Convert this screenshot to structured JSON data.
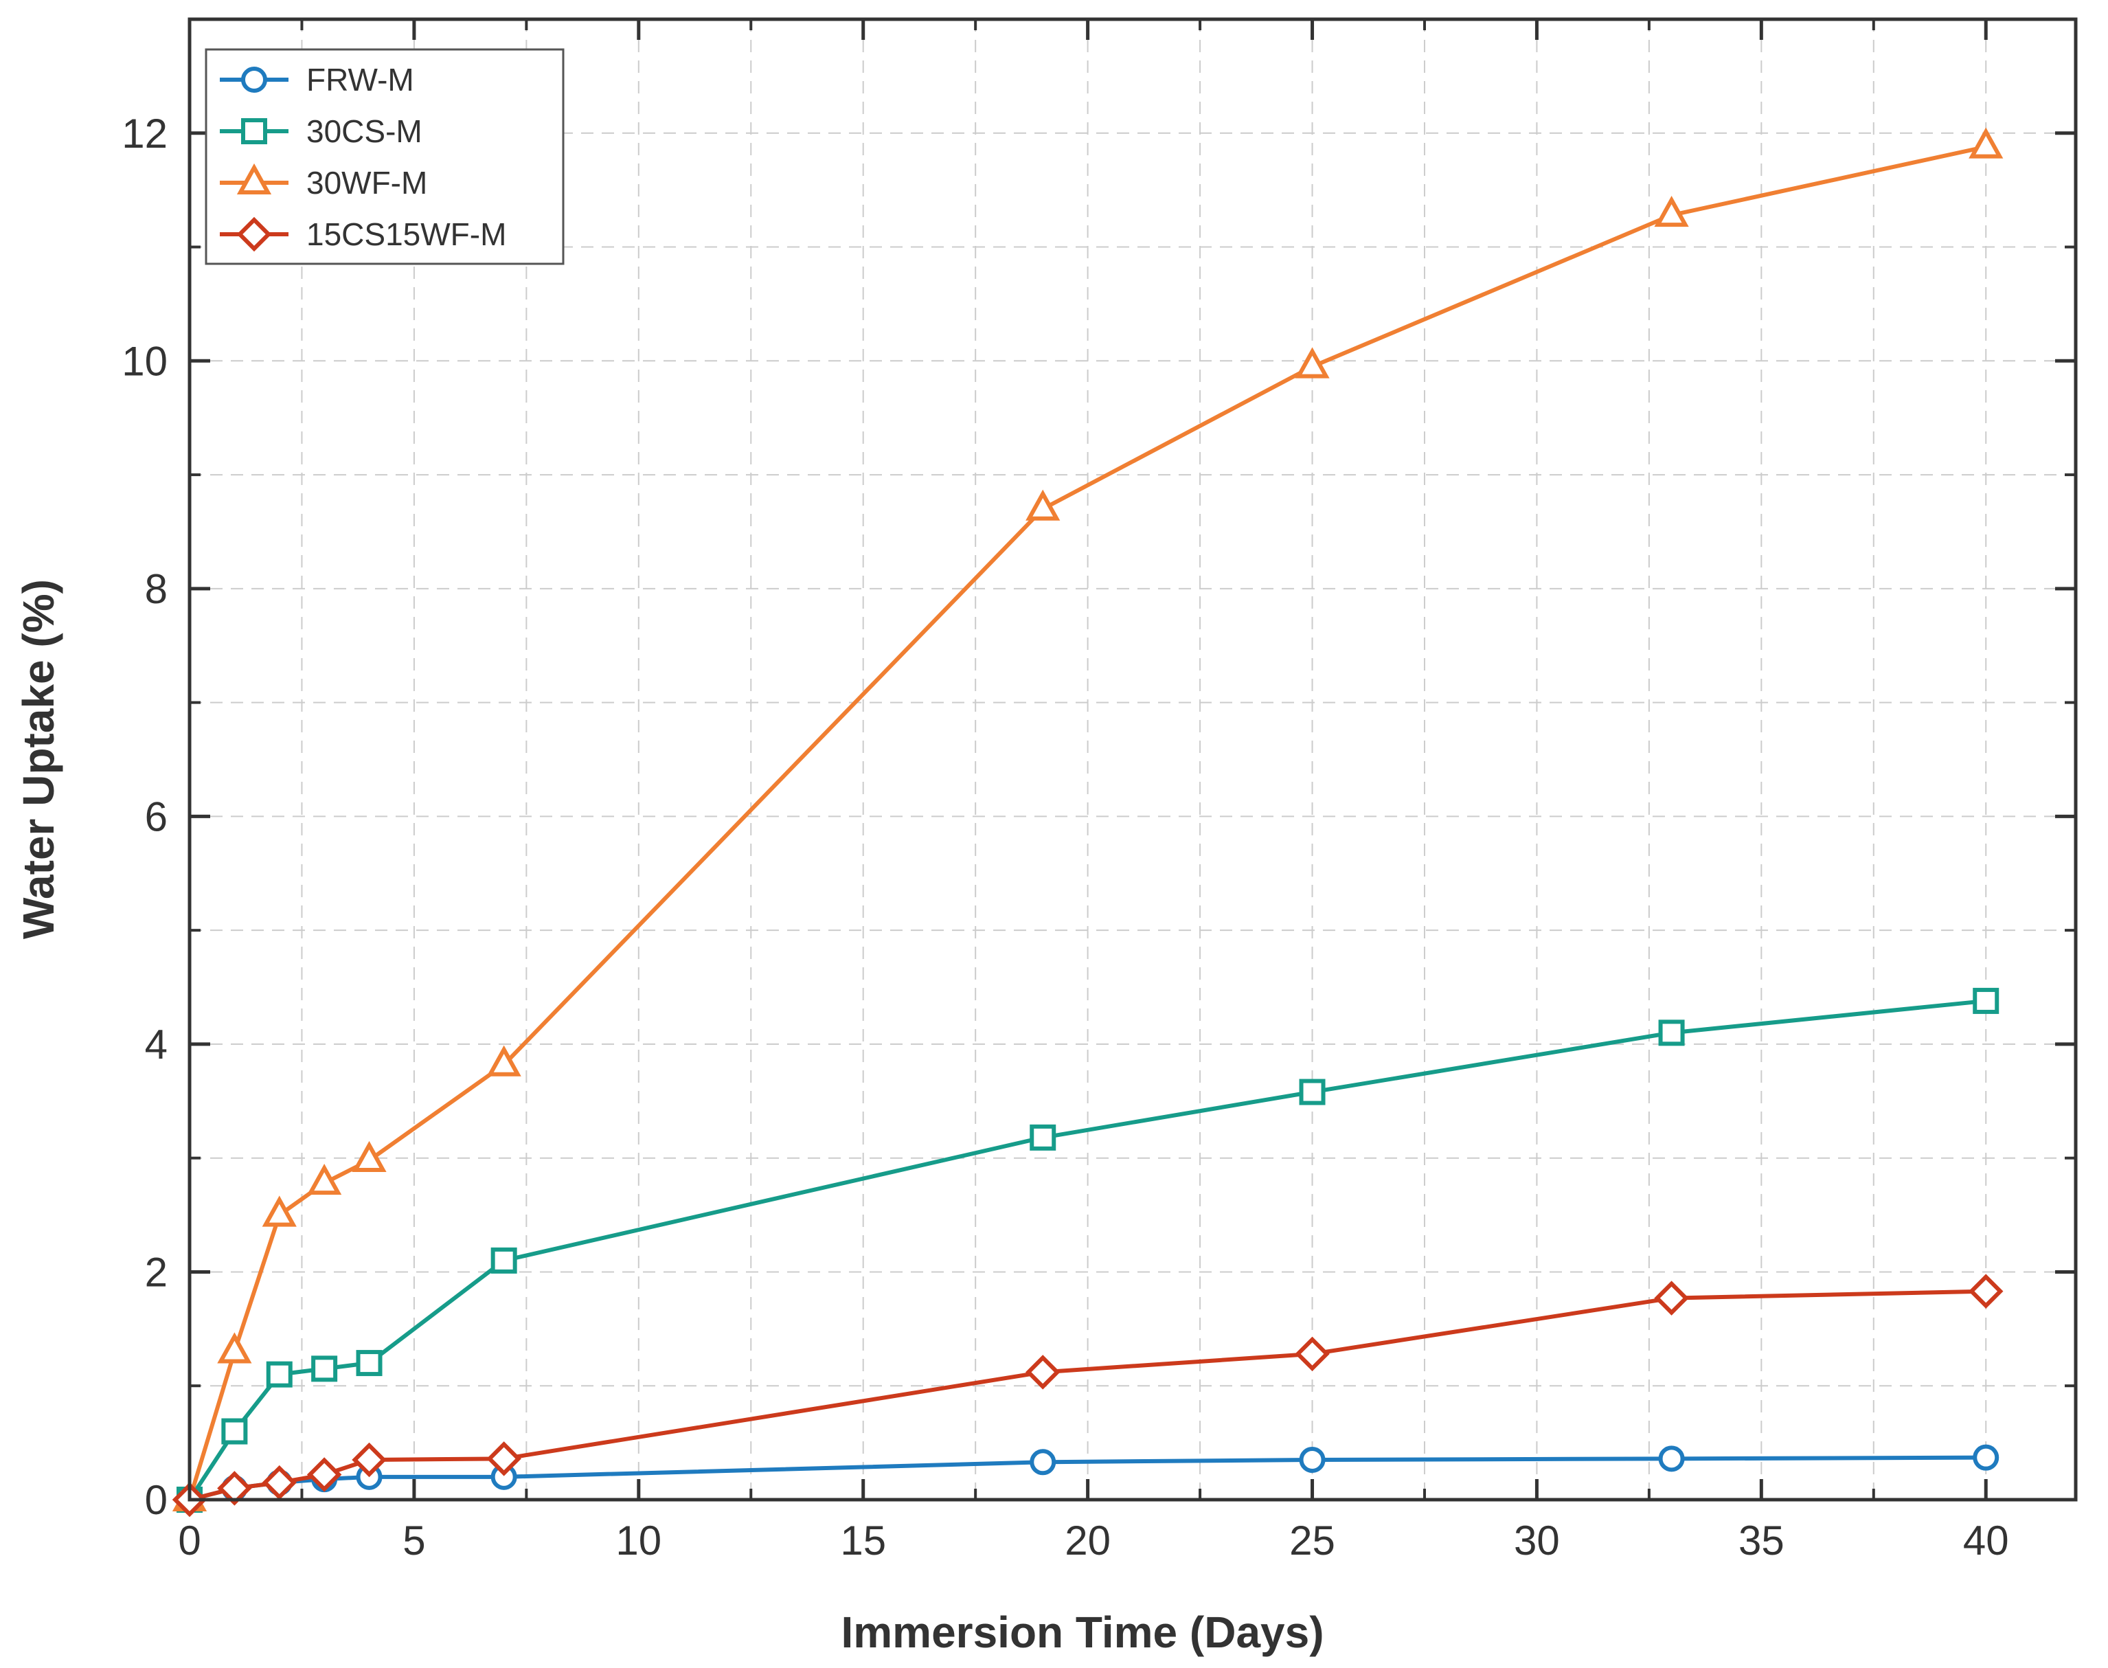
{
  "chart_data": {
    "type": "line",
    "title": "",
    "xlabel": "Immersion Time (Days)",
    "ylabel": "Water Uptake (%)",
    "xlim": [
      0,
      42
    ],
    "ylim": [
      0,
      13
    ],
    "xticks": [
      0,
      5,
      10,
      15,
      20,
      25,
      30,
      35,
      40
    ],
    "yticks": [
      0,
      2,
      4,
      6,
      8,
      10,
      12
    ],
    "xtick_labels": [
      "0",
      "5",
      "10",
      "15",
      "20",
      "25",
      "30",
      "35",
      "40"
    ],
    "ytick_labels": [
      "0",
      "2",
      "4",
      "6",
      "8",
      "10",
      "12"
    ],
    "grid": true,
    "legend_position": "top-left",
    "x": [
      0,
      1,
      2,
      3,
      4,
      7,
      19,
      25,
      33,
      40
    ],
    "series": [
      {
        "name": "FRW-M",
        "color": "#1f7bbf",
        "marker": "circle",
        "values": [
          0,
          0.1,
          0.15,
          0.18,
          0.2,
          0.2,
          0.33,
          0.35,
          0.36,
          0.37
        ]
      },
      {
        "name": "30CS-M",
        "color": "#169c8a",
        "marker": "square",
        "values": [
          0,
          0.6,
          1.1,
          1.15,
          1.2,
          2.1,
          3.18,
          3.58,
          4.1,
          4.38
        ]
      },
      {
        "name": "30WF-M",
        "color": "#f07f32",
        "marker": "triangle",
        "values": [
          0,
          1.3,
          2.5,
          2.78,
          2.98,
          3.82,
          8.7,
          9.95,
          11.28,
          11.88
        ]
      },
      {
        "name": "15CS15WF-M",
        "color": "#cc3a1c",
        "marker": "diamond",
        "values": [
          0,
          0.1,
          0.15,
          0.22,
          0.35,
          0.36,
          1.12,
          1.28,
          1.77,
          1.83
        ]
      }
    ]
  }
}
